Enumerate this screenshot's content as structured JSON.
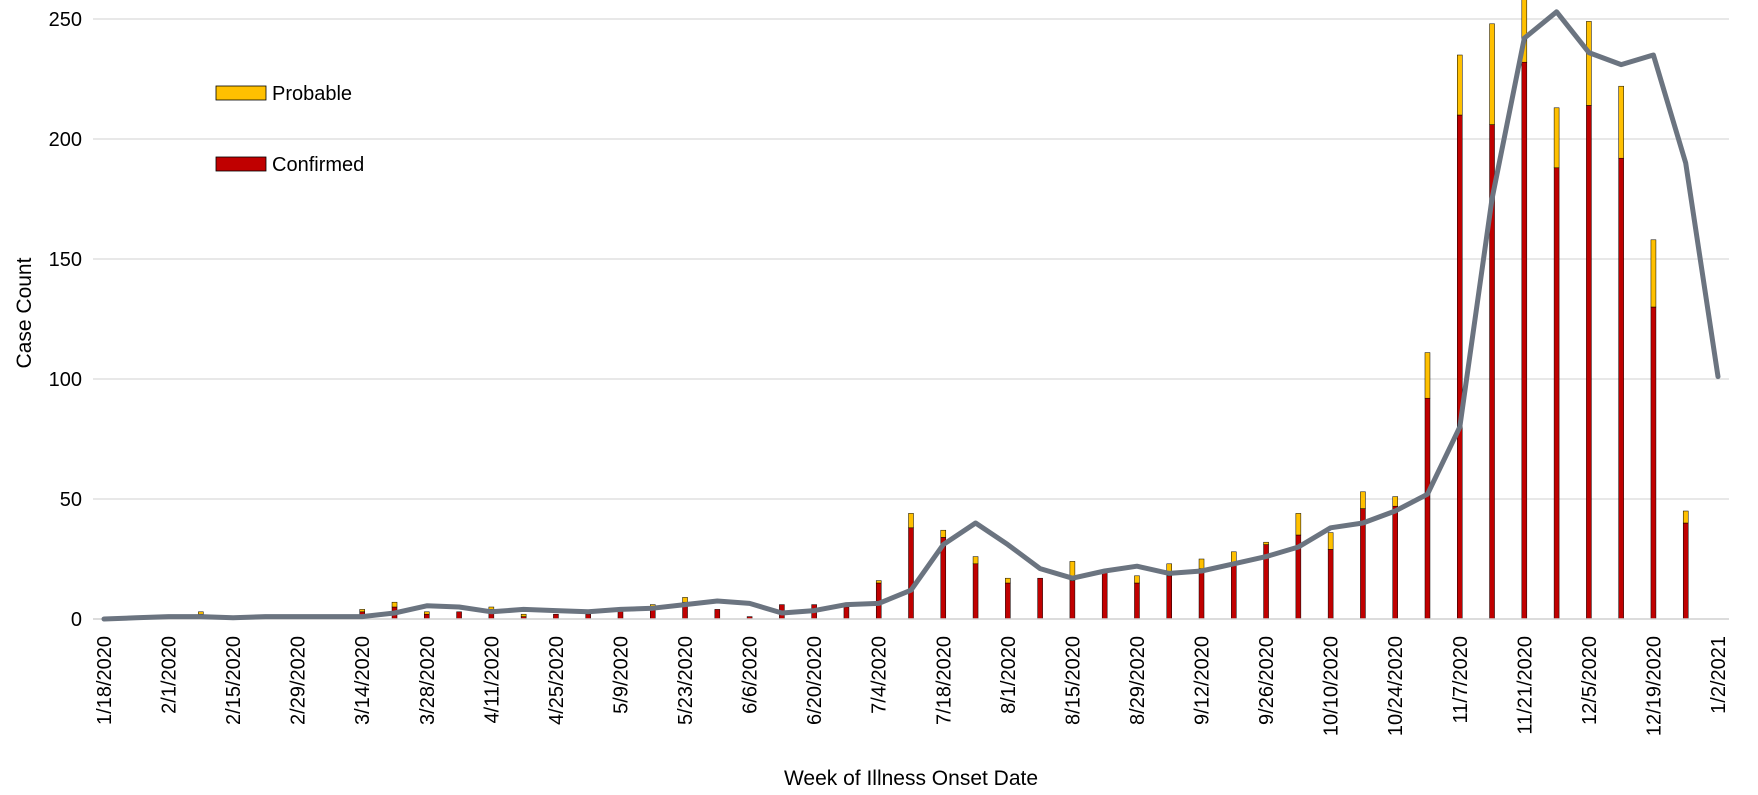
{
  "chart_data": {
    "type": "bar",
    "stacked": true,
    "xlabel": "Week of Illness Onset Date",
    "ylabel": "Case Count",
    "ylim": [
      0,
      250
    ],
    "yticks": [
      0,
      50,
      100,
      150,
      200,
      250
    ],
    "grid": true,
    "legend_position": "top-left",
    "x_tick_labels": [
      "1/18/2020",
      "2/1/2020",
      "2/15/2020",
      "2/29/2020",
      "3/14/2020",
      "3/28/2020",
      "4/11/2020",
      "4/25/2020",
      "5/9/2020",
      "5/23/2020",
      "6/6/2020",
      "6/20/2020",
      "7/4/2020",
      "7/18/2020",
      "8/1/2020",
      "8/15/2020",
      "8/29/2020",
      "9/12/2020",
      "9/26/2020",
      "10/10/2020",
      "10/24/2020",
      "11/7/2020",
      "11/21/2020",
      "12/5/2020",
      "12/19/2020",
      "1/2/2021"
    ],
    "weeks": [
      "1/18/2020",
      "1/25/2020",
      "2/1/2020",
      "2/8/2020",
      "2/15/2020",
      "2/22/2020",
      "2/29/2020",
      "3/7/2020",
      "3/14/2020",
      "3/21/2020",
      "3/28/2020",
      "4/4/2020",
      "4/11/2020",
      "4/18/2020",
      "4/25/2020",
      "5/2/2020",
      "5/9/2020",
      "5/16/2020",
      "5/23/2020",
      "5/30/2020",
      "6/6/2020",
      "6/13/2020",
      "6/20/2020",
      "6/27/2020",
      "7/4/2020",
      "7/11/2020",
      "7/18/2020",
      "7/25/2020",
      "8/1/2020",
      "8/8/2020",
      "8/15/2020",
      "8/22/2020",
      "8/29/2020",
      "9/5/2020",
      "9/12/2020",
      "9/19/2020",
      "9/26/2020",
      "10/3/2020",
      "10/10/2020",
      "10/17/2020",
      "10/24/2020",
      "10/31/2020",
      "11/7/2020",
      "11/14/2020",
      "11/21/2020",
      "11/28/2020",
      "12/5/2020",
      "12/12/2020",
      "12/19/2020",
      "12/26/2020",
      "1/2/2021"
    ],
    "series": [
      {
        "name": "Confirmed",
        "color": "#C00000",
        "values": [
          0,
          0,
          0,
          2,
          0,
          0,
          0,
          0,
          3,
          5,
          2,
          3,
          4,
          1,
          2,
          2,
          4,
          5,
          7,
          4,
          1,
          6,
          6,
          5,
          15,
          38,
          34,
          23,
          15,
          17,
          16,
          20,
          15,
          18,
          21,
          23,
          31,
          35,
          29,
          46,
          47,
          92,
          210,
          206,
          232,
          188,
          214,
          192,
          130,
          40,
          0
        ]
      },
      {
        "name": "Probable",
        "color": "#FFC000",
        "values": [
          0,
          0,
          0,
          1,
          0,
          0,
          0,
          0,
          1,
          2,
          1,
          0,
          1,
          1,
          0,
          0,
          0,
          1,
          2,
          0,
          0,
          0,
          0,
          0,
          1,
          6,
          3,
          3,
          2,
          0,
          8,
          0,
          3,
          5,
          4,
          5,
          1,
          9,
          7,
          7,
          4,
          19,
          25,
          42,
          28,
          25,
          35,
          30,
          28,
          5,
          0
        ]
      }
    ],
    "trend_line": {
      "color": "#6B7480",
      "values": [
        0,
        0.5,
        1,
        1,
        0.5,
        1,
        1,
        1,
        1,
        2.5,
        5.5,
        5,
        3,
        4,
        3.5,
        3,
        4,
        4.5,
        6,
        7.5,
        6.5,
        2.5,
        3.5,
        6,
        6.5,
        12,
        31,
        40,
        31,
        21,
        17,
        20,
        22,
        19,
        20,
        23,
        26,
        30,
        38,
        40,
        45,
        52,
        80,
        175,
        242,
        253,
        236,
        231,
        235,
        190,
        101
      ]
    }
  }
}
